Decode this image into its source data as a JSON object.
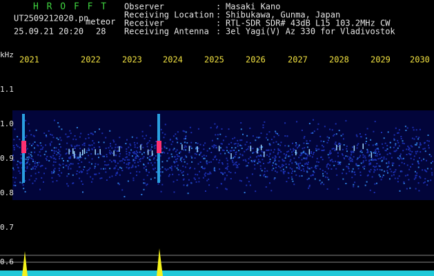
{
  "app": {
    "name": "H R O F F T",
    "file": "UT2509212020.pn",
    "tag": "meteor",
    "datetime": "25.09.21 20:20",
    "count": "28"
  },
  "header": {
    "fields": [
      {
        "label": "Observer",
        "sep": ":",
        "value": "Masaki Kano"
      },
      {
        "label": "Receiving Location",
        "sep": ":",
        "value": "Shibukawa, Gunma, Japan"
      },
      {
        "label": "Receiver",
        "sep": ":",
        "value": "RTL-SDR SDR# 43dB L15 103.2MHz CW"
      },
      {
        "label": "Receiving Antenna",
        "sep": ":",
        "value": "3el Yagi(V) Az 330 for Vladivostok"
      }
    ]
  },
  "axis": {
    "unit": "kHz",
    "freq_labels": [
      "1.1",
      "1.0",
      "0.9",
      "0.8",
      "0.7",
      "0.6"
    ],
    "time_labels": [
      "2021",
      "2022",
      "2023",
      "2024",
      "2025",
      "2026",
      "2027",
      "2028",
      "2029",
      "2030"
    ]
  }
}
